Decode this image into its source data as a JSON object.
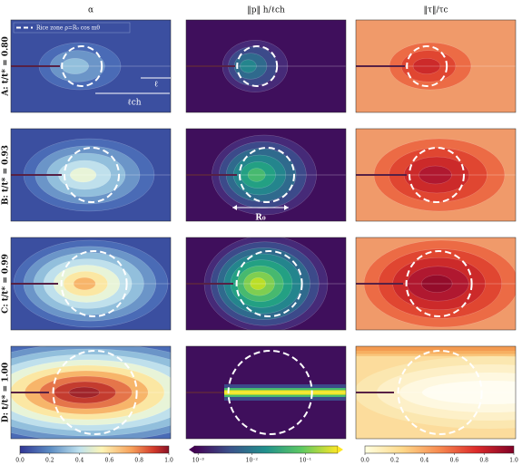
{
  "columns": [
    {
      "title": "α"
    },
    {
      "title": "‖p‖ h/ℓch"
    },
    {
      "title": "‖τ‖/τc"
    }
  ],
  "rows": [
    {
      "label": "A: t/t* = 0.80"
    },
    {
      "label": "B: t/t* = 0.93"
    },
    {
      "label": "C: t/t* = 0.99"
    },
    {
      "label": "D: t/t* = 1.00"
    }
  ],
  "annotations": {
    "legend": "Rice zone ρ=R₀ cos mθ",
    "ell": "ℓ",
    "ell_ch": "ℓch",
    "r0": "R₀"
  },
  "colorbars": [
    {
      "scale": "linear",
      "lim": [
        0,
        1
      ],
      "ticks": [
        {
          "value": 0,
          "label": "0.0"
        },
        {
          "value": 0.2,
          "label": "0.2"
        },
        {
          "value": 0.4,
          "label": "0.4"
        },
        {
          "value": 0.6,
          "label": "0.6"
        },
        {
          "value": 0.8,
          "label": "0.8"
        },
        {
          "value": 1,
          "label": "1.0"
        }
      ]
    },
    {
      "scale": "log",
      "lim": [
        0.00085,
        0.4
      ],
      "ticks": [
        {
          "value": 0.001,
          "label": "10⁻³"
        },
        {
          "value": 0.01,
          "label": "10⁻²"
        },
        {
          "value": 0.1,
          "label": "10⁻¹"
        }
      ]
    },
    {
      "scale": "linear",
      "lim": [
        0,
        1
      ],
      "ticks": [
        {
          "value": 0,
          "label": "0.0"
        },
        {
          "value": 0.2,
          "label": "0.2"
        },
        {
          "value": 0.4,
          "label": "0.4"
        },
        {
          "value": 0.6,
          "label": "0.6"
        },
        {
          "value": 0.8,
          "label": "0.8"
        },
        {
          "value": 1,
          "label": "1.0"
        }
      ]
    }
  ]
}
